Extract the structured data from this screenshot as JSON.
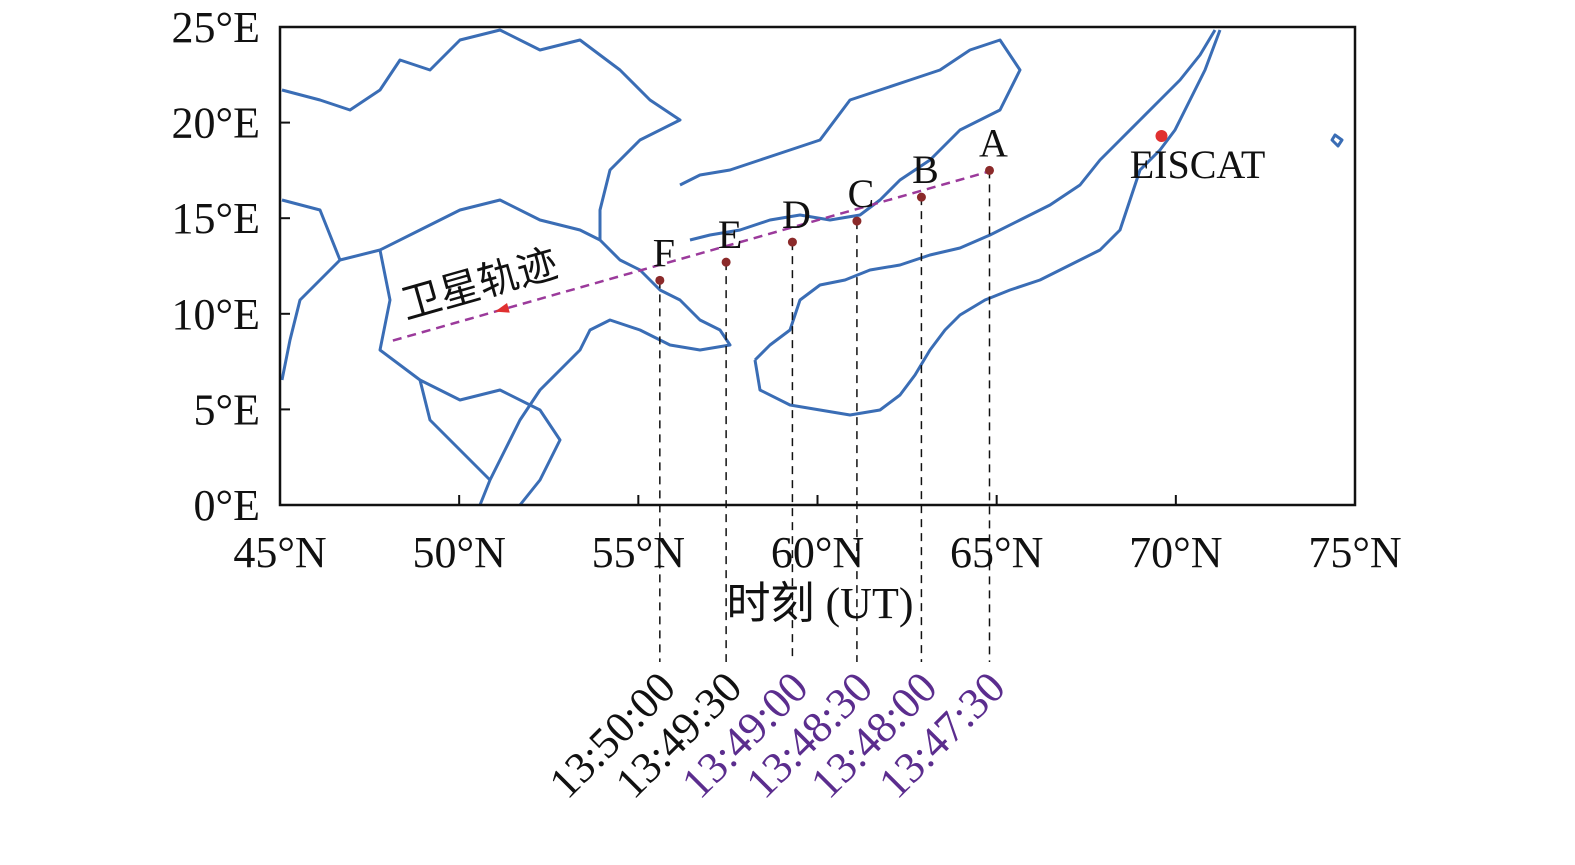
{
  "chart_data": {
    "type": "track-map",
    "xlim": [
      45,
      75
    ],
    "ylim": [
      0,
      25
    ],
    "xticks": [
      {
        "value": 45,
        "label": "45°N"
      },
      {
        "value": 50,
        "label": "50°N"
      },
      {
        "value": 55,
        "label": "55°N"
      },
      {
        "value": 60,
        "label": "60°N"
      },
      {
        "value": 65,
        "label": "65°N"
      },
      {
        "value": 70,
        "label": "70°N"
      },
      {
        "value": 75,
        "label": "75°N"
      }
    ],
    "yticks": [
      {
        "value": 0,
        "label": "0°E"
      },
      {
        "value": 5,
        "label": "5°E"
      },
      {
        "value": 10,
        "label": "10°E"
      },
      {
        "value": 15,
        "label": "15°E"
      },
      {
        "value": 20,
        "label": "20°E"
      },
      {
        "value": 25,
        "label": "25°E"
      }
    ],
    "xlabel": "时刻 (UT)",
    "coast_color": "#3a6db5",
    "track": {
      "label": "卫星轨迹",
      "color": "#9b3a9b",
      "x": [
        48.15,
        64.9
      ],
      "y": [
        8.6,
        17.5
      ]
    },
    "points": {
      "color": "#8b2a2a",
      "labels": [
        "A",
        "B",
        "C",
        "D",
        "E",
        "F"
      ],
      "x": [
        64.8,
        62.9,
        61.1,
        59.3,
        57.45,
        55.6
      ],
      "y": [
        17.5,
        16.1,
        14.85,
        13.75,
        12.7,
        11.75
      ],
      "times": [
        "13:47:30",
        "13:48:00",
        "13:48:30",
        "13:49:00",
        "13:49:30",
        "13:50:00"
      ],
      "time_colors": [
        "#5b2d8e",
        "#5b2d8e",
        "#5b2d8e",
        "#5b2d8e",
        "#111111",
        "#111111"
      ]
    },
    "station": {
      "label": "EISCAT",
      "x": 69.6,
      "y": 19.3,
      "color": "#e03030"
    }
  }
}
